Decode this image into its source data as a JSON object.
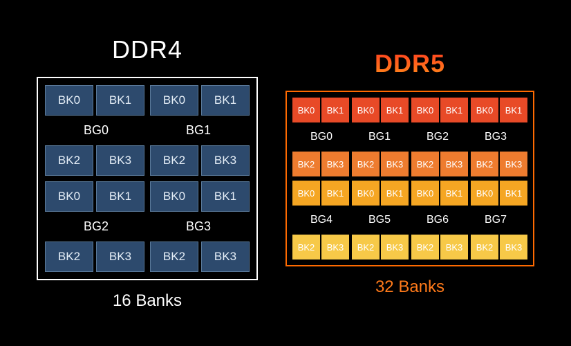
{
  "ddr4": {
    "title": "DDR4",
    "footer": "16 Banks",
    "title_color": "#ffffff",
    "border_color": "#ffffff",
    "bank_bg": "#2d4a6d",
    "bank_border": "#5a7a9a",
    "bank_text": "#e5eef7",
    "rows": [
      {
        "groups": [
          {
            "label": "BG0",
            "top": [
              "BK0",
              "BK1"
            ],
            "bottom": [
              "BK2",
              "BK3"
            ]
          },
          {
            "label": "BG1",
            "top": [
              "BK0",
              "BK1"
            ],
            "bottom": [
              "BK2",
              "BK3"
            ]
          }
        ]
      },
      {
        "groups": [
          {
            "label": "BG2",
            "top": [
              "BK0",
              "BK1"
            ],
            "bottom": [
              "BK2",
              "BK3"
            ]
          },
          {
            "label": "BG3",
            "top": [
              "BK0",
              "BK1"
            ],
            "bottom": [
              "BK2",
              "BK3"
            ]
          }
        ]
      }
    ]
  },
  "ddr5": {
    "title": "DDR5",
    "footer": "32 Banks",
    "border_color": "#ff6a00",
    "footer_color": "#ff7a1a",
    "title_gradient": [
      "#ff3b1f",
      "#ff8c1a"
    ],
    "rows": [
      {
        "row_colors": {
          "top": "#e84a27",
          "bottom": "#ee7c2f"
        },
        "groups": [
          {
            "label": "BG0",
            "top": [
              "BK0",
              "BK1"
            ],
            "bottom": [
              "BK2",
              "BK3"
            ]
          },
          {
            "label": "BG1",
            "top": [
              "BK0",
              "BK1"
            ],
            "bottom": [
              "BK2",
              "BK3"
            ]
          },
          {
            "label": "BG2",
            "top": [
              "BK0",
              "BK1"
            ],
            "bottom": [
              "BK2",
              "BK3"
            ]
          },
          {
            "label": "BG3",
            "top": [
              "BK0",
              "BK1"
            ],
            "bottom": [
              "BK2",
              "BK3"
            ]
          }
        ]
      },
      {
        "row_colors": {
          "top": "#f5a623",
          "bottom": "#f7c948"
        },
        "groups": [
          {
            "label": "BG4",
            "top": [
              "BK0",
              "BK1"
            ],
            "bottom": [
              "BK2",
              "BK3"
            ]
          },
          {
            "label": "BG5",
            "top": [
              "BK0",
              "BK1"
            ],
            "bottom": [
              "BK2",
              "BK3"
            ]
          },
          {
            "label": "BG6",
            "top": [
              "BK0",
              "BK1"
            ],
            "bottom": [
              "BK2",
              "BK3"
            ]
          },
          {
            "label": "BG7",
            "top": [
              "BK0",
              "BK1"
            ],
            "bottom": [
              "BK2",
              "BK3"
            ]
          }
        ]
      }
    ]
  }
}
